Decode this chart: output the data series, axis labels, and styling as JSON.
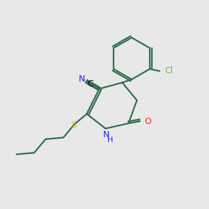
{
  "background_color": "#e8e8e8",
  "bond_color": "#2d6e4e",
  "bond_lw": 1.6,
  "s_color": "#cccc00",
  "n_color": "#1a1aff",
  "o_color": "#ff2200",
  "cl_color": "#7ab648",
  "label_fontsize": 9,
  "label_fontsize_small": 8,
  "figsize": [
    3.0,
    3.0
  ],
  "dpi": 100,
  "xlim": [
    0,
    10
  ],
  "ylim": [
    0,
    10
  ]
}
